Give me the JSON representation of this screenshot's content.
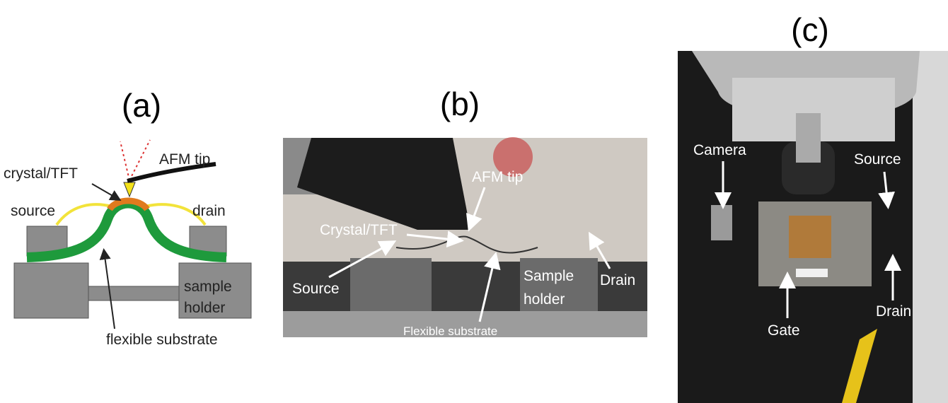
{
  "panels": [
    {
      "label": "(a)",
      "annotations": [
        "AFM tip",
        "crystal/TFT",
        "source",
        "drain",
        "sample",
        "holder",
        "flexible substrate"
      ]
    },
    {
      "label": "(b)",
      "annotations": [
        "AFM tip",
        "Crystal/TFT",
        "Source",
        "Sample",
        "holder",
        "Drain",
        "Flexible substrate"
      ]
    },
    {
      "label": "(c)",
      "annotations": [
        "Camera",
        "Source",
        "Drain",
        "Gate"
      ]
    }
  ]
}
